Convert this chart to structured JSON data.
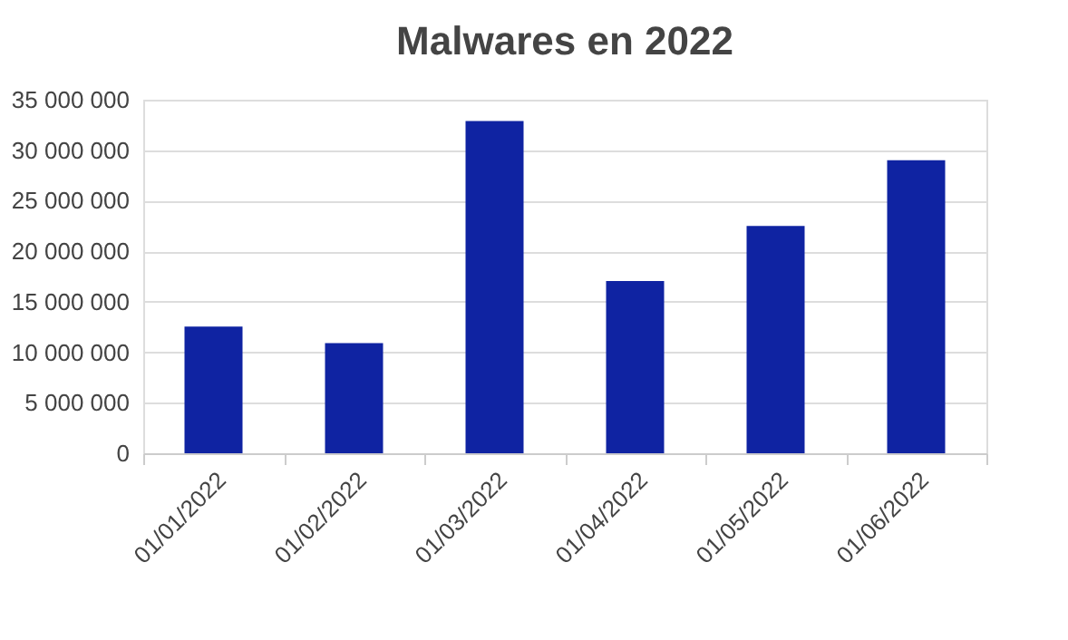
{
  "chart_data": {
    "type": "bar",
    "title": "Malwares en 2022",
    "categories": [
      "01/01/2022",
      "01/02/2022",
      "01/03/2022",
      "01/04/2022",
      "01/05/2022",
      "01/06/2022"
    ],
    "series": [
      {
        "color": "#0f23a2",
        "values": [
          12550000,
          10900000,
          32900000,
          17050000,
          22500000,
          29000000
        ]
      }
    ],
    "ylim": [
      0,
      35000000
    ],
    "yticks": [
      0,
      {
        "value": 5000000,
        "label": "5 000 000"
      },
      {
        "value": 10000000,
        "label": "10 000 000"
      },
      {
        "value": 15000000,
        "label": "15 000 000"
      },
      {
        "value": 20000000,
        "label": "20 000 000"
      },
      {
        "value": 25000000,
        "label": "25 000 000"
      },
      {
        "value": 30000000,
        "label": "30 000 000"
      },
      {
        "value": 35000000,
        "label": "35 000 000"
      }
    ],
    "grid": "y"
  }
}
